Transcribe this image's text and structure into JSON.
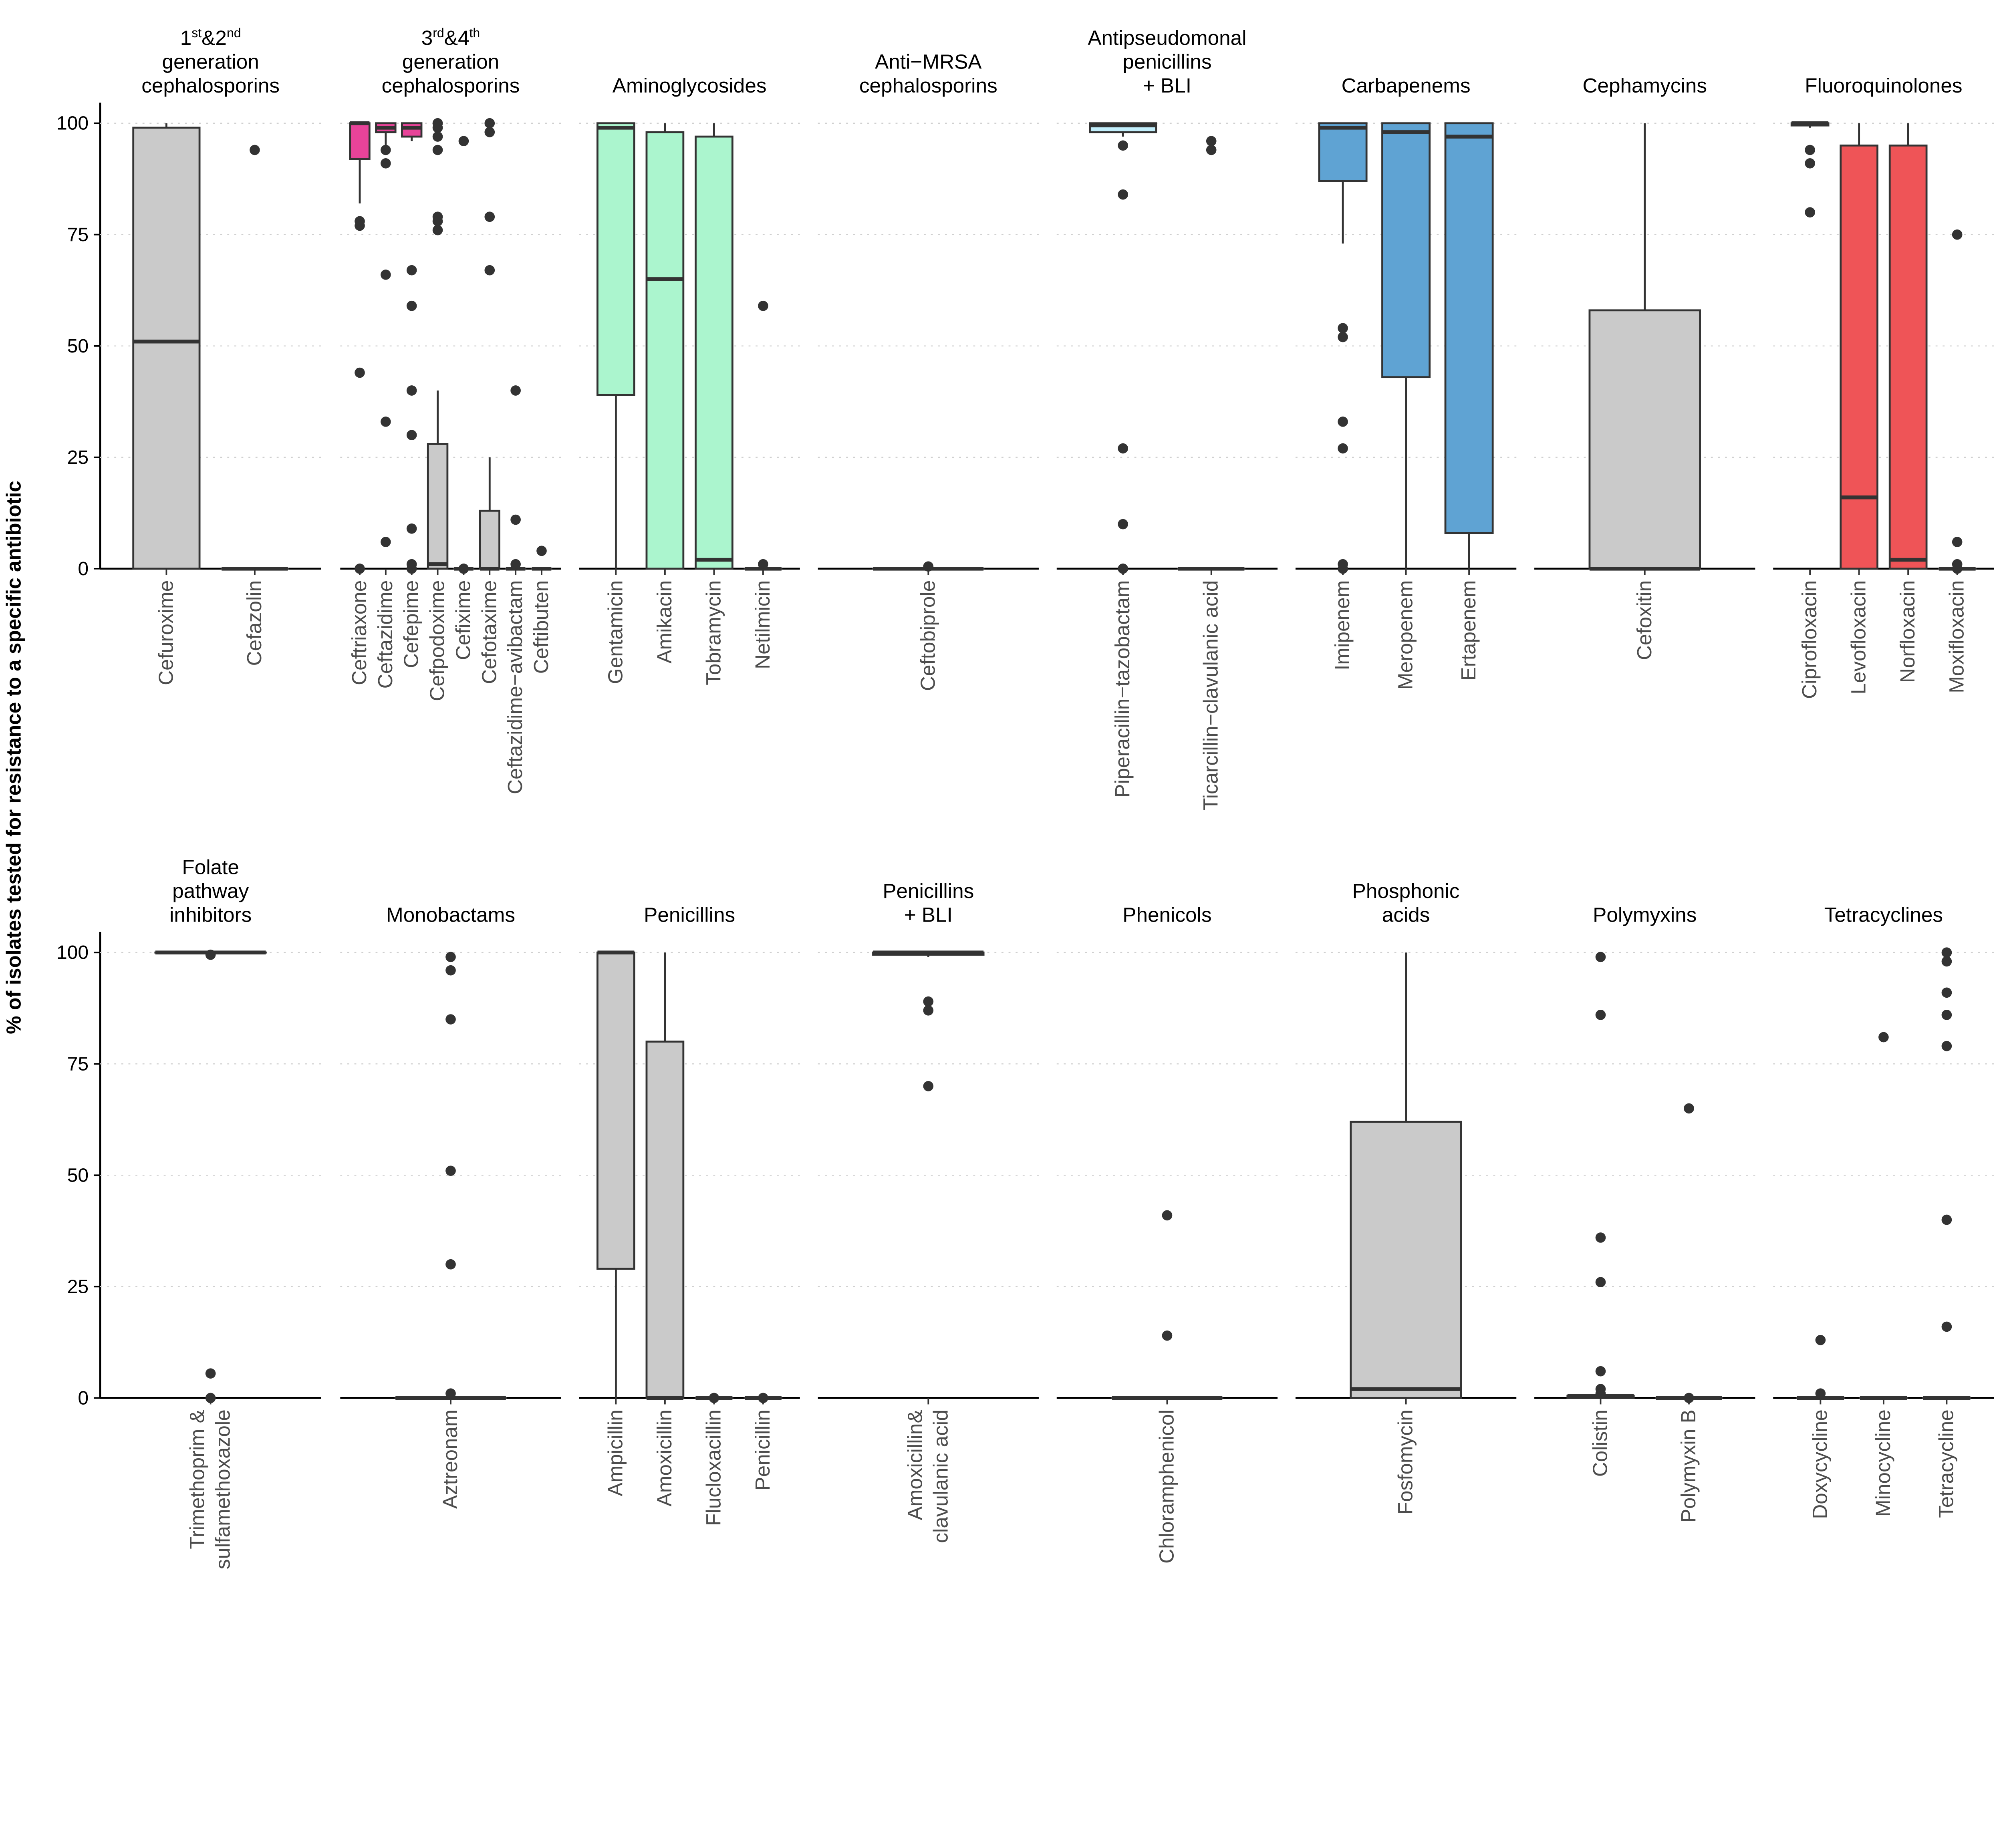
{
  "chart_data": {
    "type": "box",
    "ylabel": "% of isolates tested for resistance to a specific antibiotic",
    "ylim": [
      0,
      100
    ],
    "yticks": [
      0,
      25,
      50,
      75,
      100
    ],
    "grid": "horizontal dotted",
    "box_format": "[lower_whisker, q1, median, q3, upper_whisker]",
    "colors": {
      "grey": "#CACACA",
      "pink": "#E84399",
      "green": "#ABF5CE",
      "lightblue": "#C2EFFC",
      "blue": "#5FA3D3",
      "red": "#EF5457",
      "outline": "#333333"
    },
    "rows": [
      [
        {
          "title": [
            "1st&2nd",
            "generation",
            "cephalosporins"
          ],
          "drugs": [
            {
              "name": [
                "Cefuroxime"
              ],
              "box": [
                0,
                0,
                51,
                99,
                100
              ],
              "fill": "grey",
              "outliers": []
            },
            {
              "name": [
                "Cefazolin"
              ],
              "box": [
                0,
                0,
                0,
                0,
                0
              ],
              "fill": "grey",
              "outliers": [
                94
              ]
            }
          ]
        },
        {
          "title": [
            "3rd&4th",
            "generation",
            "cephalosporins"
          ],
          "drugs": [
            {
              "name": [
                "Ceftriaxone"
              ],
              "box": [
                82,
                92,
                100,
                100,
                100
              ],
              "fill": "pink",
              "outliers": [
                78,
                77,
                44,
                0
              ]
            },
            {
              "name": [
                "Ceftazidime"
              ],
              "box": [
                95,
                98,
                99,
                100,
                100
              ],
              "fill": "pink",
              "outliers": [
                94,
                91,
                66,
                33,
                6
              ]
            },
            {
              "name": [
                "Cefepime"
              ],
              "box": [
                96,
                97,
                99,
                100,
                100
              ],
              "fill": "pink",
              "outliers": [
                67,
                59,
                40,
                30,
                9,
                1,
                0
              ]
            },
            {
              "name": [
                "Cefpodoxime"
              ],
              "box": [
                0,
                0,
                1,
                28,
                40
              ],
              "fill": "grey",
              "outliers": [
                100,
                99,
                97,
                94,
                79,
                78,
                76
              ]
            },
            {
              "name": [
                "Cefixime"
              ],
              "box": [
                0,
                0,
                0,
                0,
                0
              ],
              "fill": "grey",
              "outliers": [
                96,
                0
              ]
            },
            {
              "name": [
                "Cefotaxime"
              ],
              "box": [
                0,
                0,
                0,
                13,
                25
              ],
              "fill": "grey",
              "outliers": [
                100,
                98,
                79,
                67
              ]
            },
            {
              "name": [
                "Ceftazidime−avibactam"
              ],
              "box": [
                0,
                0,
                0,
                0,
                0
              ],
              "fill": "grey",
              "outliers": [
                40,
                11,
                1
              ]
            },
            {
              "name": [
                "Ceftibuten"
              ],
              "box": [
                0,
                0,
                0,
                0,
                0
              ],
              "fill": "grey",
              "outliers": [
                4
              ]
            }
          ]
        },
        {
          "title": [
            "Aminoglycosides"
          ],
          "drugs": [
            {
              "name": [
                "Gentamicin"
              ],
              "box": [
                0,
                39,
                99,
                100,
                100
              ],
              "fill": "green",
              "outliers": []
            },
            {
              "name": [
                "Amikacin"
              ],
              "box": [
                0,
                0,
                65,
                98,
                100
              ],
              "fill": "green",
              "outliers": []
            },
            {
              "name": [
                "Tobramycin"
              ],
              "box": [
                0,
                0,
                2,
                97,
                100
              ],
              "fill": "green",
              "outliers": []
            },
            {
              "name": [
                "Netilmicin"
              ],
              "box": [
                0,
                0,
                0,
                0,
                0
              ],
              "fill": "green",
              "outliers": [
                59,
                1
              ]
            }
          ]
        },
        {
          "title": [
            "Anti−MRSA",
            "cephalosporins"
          ],
          "drugs": [
            {
              "name": [
                "Ceftobiprole"
              ],
              "box": [
                0,
                0,
                0,
                0,
                0
              ],
              "fill": "grey",
              "outliers": [
                0.5
              ]
            }
          ]
        },
        {
          "title": [
            "Antipseudomonal",
            "penicillins",
            "+ BLI"
          ],
          "drugs": [
            {
              "name": [
                "Piperacillin−tazobactam"
              ],
              "box": [
                97,
                98,
                99.5,
                100,
                100
              ],
              "fill": "lightblue",
              "outliers": [
                95,
                84,
                27,
                10,
                0
              ]
            },
            {
              "name": [
                "Ticarcillin−clavulanic acid"
              ],
              "box": [
                0,
                0,
                0,
                0,
                0
              ],
              "fill": "grey",
              "outliers": [
                96,
                94
              ]
            }
          ]
        },
        {
          "title": [
            "Carbapenems"
          ],
          "drugs": [
            {
              "name": [
                "Imipenem"
              ],
              "box": [
                73,
                87,
                99,
                100,
                100
              ],
              "fill": "blue",
              "outliers": [
                54,
                52,
                33,
                27,
                1,
                0
              ]
            },
            {
              "name": [
                "Meropenem"
              ],
              "box": [
                0,
                43,
                98,
                100,
                100
              ],
              "fill": "blue",
              "outliers": []
            },
            {
              "name": [
                "Ertapenem"
              ],
              "box": [
                0,
                8,
                97,
                100,
                100
              ],
              "fill": "blue",
              "outliers": []
            }
          ]
        },
        {
          "title": [
            "Cephamycins"
          ],
          "drugs": [
            {
              "name": [
                "Cefoxitin"
              ],
              "box": [
                0,
                0,
                0,
                58,
                100
              ],
              "fill": "grey",
              "outliers": []
            }
          ]
        },
        {
          "title": [
            "Fluoroquinolones"
          ],
          "drugs": [
            {
              "name": [
                "Ciprofloxacin"
              ],
              "box": [
                99,
                99.5,
                100,
                100,
                100
              ],
              "fill": "red",
              "outliers": [
                94,
                91,
                80
              ]
            },
            {
              "name": [
                "Levofloxacin"
              ],
              "box": [
                0,
                0,
                16,
                95,
                100
              ],
              "fill": "red",
              "outliers": []
            },
            {
              "name": [
                "Norfloxacin"
              ],
              "box": [
                0,
                0,
                2,
                95,
                100
              ],
              "fill": "red",
              "outliers": []
            },
            {
              "name": [
                "Moxifloxacin"
              ],
              "box": [
                0,
                0,
                0,
                0,
                0
              ],
              "fill": "grey",
              "outliers": [
                75,
                6,
                1,
                0
              ]
            }
          ]
        }
      ],
      [
        {
          "title": [
            "Folate",
            "pathway",
            "inhibitors"
          ],
          "drugs": [
            {
              "name": [
                "Trimethoprim &",
                "sulfamethoxazole"
              ],
              "box": [
                100,
                100,
                100,
                100,
                100
              ],
              "fill": "grey",
              "outliers": [
                99.5,
                5.5,
                0
              ]
            }
          ]
        },
        {
          "title": [
            "Monobactams"
          ],
          "drugs": [
            {
              "name": [
                "Aztreonam"
              ],
              "box": [
                0,
                0,
                0,
                0,
                0
              ],
              "fill": "grey",
              "outliers": [
                99,
                96,
                85,
                51,
                30,
                1
              ]
            }
          ]
        },
        {
          "title": [
            "Penicillins"
          ],
          "drugs": [
            {
              "name": [
                "Ampicillin"
              ],
              "box": [
                0,
                29,
                100,
                100,
                100
              ],
              "fill": "grey",
              "outliers": []
            },
            {
              "name": [
                "Amoxicillin"
              ],
              "box": [
                0,
                0,
                0,
                80,
                100
              ],
              "fill": "grey",
              "outliers": []
            },
            {
              "name": [
                "Flucloxacillin"
              ],
              "box": [
                0,
                0,
                0,
                0,
                0
              ],
              "fill": "grey",
              "outliers": [
                0
              ]
            },
            {
              "name": [
                "Penicillin"
              ],
              "box": [
                0,
                0,
                0,
                0,
                0
              ],
              "fill": "grey",
              "outliers": [
                0
              ]
            }
          ]
        },
        {
          "title": [
            "Penicillins",
            "+ BLI"
          ],
          "drugs": [
            {
              "name": [
                "Amoxicillin&",
                "clavulanic acid"
              ],
              "box": [
                99,
                99.5,
                100,
                100,
                100
              ],
              "fill": "grey",
              "outliers": [
                89,
                87,
                70
              ]
            }
          ]
        },
        {
          "title": [
            "Phenicols"
          ],
          "drugs": [
            {
              "name": [
                "Chloramphenicol"
              ],
              "box": [
                0,
                0,
                0,
                0,
                0
              ],
              "fill": "grey",
              "outliers": [
                41,
                14
              ]
            }
          ]
        },
        {
          "title": [
            "Phosphonic",
            "acids"
          ],
          "drugs": [
            {
              "name": [
                "Fosfomycin"
              ],
              "box": [
                0,
                0,
                2,
                62,
                100
              ],
              "fill": "grey",
              "outliers": []
            }
          ]
        },
        {
          "title": [
            "Polymyxins"
          ],
          "drugs": [
            {
              "name": [
                "Colistin"
              ],
              "box": [
                0,
                0,
                0.5,
                0.5,
                0.5
              ],
              "fill": "grey",
              "outliers": [
                99,
                86,
                36,
                26,
                6,
                2,
                1
              ]
            },
            {
              "name": [
                "Polymyxin B"
              ],
              "box": [
                0,
                0,
                0,
                0,
                0
              ],
              "fill": "grey",
              "outliers": [
                65,
                0
              ]
            }
          ]
        },
        {
          "title": [
            "Tetracyclines"
          ],
          "drugs": [
            {
              "name": [
                "Doxycycline"
              ],
              "box": [
                0,
                0,
                0,
                0,
                0
              ],
              "fill": "grey",
              "outliers": [
                13,
                1
              ]
            },
            {
              "name": [
                "Minocycline"
              ],
              "box": [
                0,
                0,
                0,
                0,
                0
              ],
              "fill": "grey",
              "outliers": [
                81
              ]
            },
            {
              "name": [
                "Tetracycline"
              ],
              "box": [
                0,
                0,
                0,
                0,
                0
              ],
              "fill": "grey",
              "outliers": [
                100,
                98,
                91,
                86,
                79,
                40,
                16
              ]
            }
          ]
        }
      ]
    ]
  }
}
